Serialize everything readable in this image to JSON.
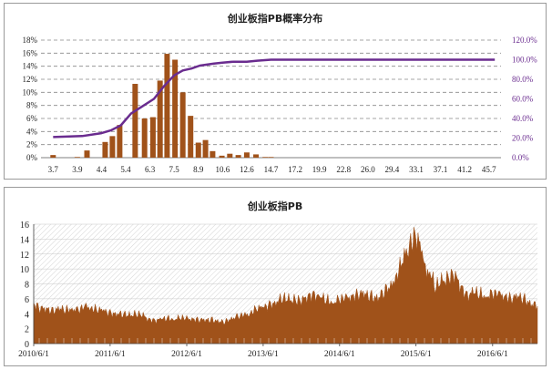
{
  "chart_data": [
    {
      "type": "bar+line",
      "title": "创业板指PB概率分布",
      "categories": [
        "3.7",
        "3.9",
        "4.4",
        "5.4",
        "6.3",
        "7.5",
        "8.9",
        "10.6",
        "12.6",
        "14.7",
        "17.2",
        "19.9",
        "22.8",
        "26.0",
        "29.4",
        "33.1",
        "37.1",
        "41.2",
        "45.7"
      ],
      "bar_x": [
        3.7,
        3.9,
        4.1,
        4.3,
        4.55,
        4.85,
        5.15,
        5.45,
        5.75,
        6.1,
        6.45,
        6.8,
        7.15,
        7.55,
        8.0,
        8.45,
        8.9,
        9.4,
        9.9,
        10.55,
        11.2,
        11.9,
        12.6,
        13.4,
        14.2,
        14.7,
        15.4,
        16.3
      ],
      "bar_values": [
        0.4,
        0.1,
        1.1,
        0.0,
        2.4,
        3.3,
        5.0,
        0.0,
        11.3,
        6.0,
        6.2,
        11.8,
        15.9,
        15.0,
        10.0,
        6.4,
        2.3,
        2.7,
        1.0,
        0.3,
        0.6,
        0.4,
        0.8,
        0.5,
        0.1,
        0.1,
        0.0,
        0.0
      ],
      "cumulative_x": [
        3.7,
        4.0,
        4.4,
        4.8,
        5.2,
        5.6,
        6.0,
        6.5,
        7.0,
        7.5,
        8.0,
        8.5,
        9.0,
        9.5,
        10.0,
        10.6,
        11.5,
        12.6,
        13.5,
        14.7,
        16.0,
        17.2,
        19.9,
        22.8,
        26.0,
        29.4,
        33.1,
        37.1,
        41.2,
        45.7,
        46.8
      ],
      "cumulative_values": [
        21,
        22,
        25,
        28,
        33,
        45,
        52,
        60,
        73,
        84,
        89,
        91,
        94,
        95,
        96,
        97,
        98,
        98,
        99,
        100,
        100,
        100,
        100,
        100,
        100,
        100,
        100,
        100,
        100,
        100,
        100
      ],
      "y_left_ticks": [
        "0%",
        "2%",
        "4%",
        "6%",
        "8%",
        "10%",
        "12%",
        "14%",
        "16%",
        "18%"
      ],
      "y_right_ticks": [
        "0.0%",
        "20.0%",
        "40.0%",
        "60.0%",
        "80.0%",
        "100.0%",
        "120.0%"
      ],
      "ylim_left": [
        0,
        18
      ],
      "ylim_right": [
        0,
        120
      ],
      "colors": {
        "bar": "#a0521a",
        "line": "#6a2c8f",
        "grid": "#888888",
        "right_axis_text": "#6a2c8f"
      }
    },
    {
      "type": "area",
      "title": "创业板指PB",
      "x_ticks": [
        "2010/6/1",
        "2011/6/1",
        "2012/6/1",
        "2013/6/1",
        "2014/6/1",
        "2015/6/1",
        "2016/6/1"
      ],
      "y_ticks": [
        "0",
        "2",
        "4",
        "6",
        "8",
        "10",
        "12",
        "14",
        "16"
      ],
      "ylim": [
        0,
        16
      ],
      "x_range": [
        "2010-06-01",
        "2017-01-01"
      ],
      "series": [
        {
          "date": "2010-06-01",
          "pb": 5.4
        },
        {
          "date": "2010-07-01",
          "pb": 4.7
        },
        {
          "date": "2010-08-01",
          "pb": 4.6
        },
        {
          "date": "2010-09-01",
          "pb": 4.4
        },
        {
          "date": "2010-10-01",
          "pb": 4.6
        },
        {
          "date": "2010-11-01",
          "pb": 4.5
        },
        {
          "date": "2010-12-01",
          "pb": 4.7
        },
        {
          "date": "2011-01-01",
          "pb": 4.4
        },
        {
          "date": "2011-02-01",
          "pb": 4.9
        },
        {
          "date": "2011-03-01",
          "pb": 4.8
        },
        {
          "date": "2011-04-01",
          "pb": 4.6
        },
        {
          "date": "2011-05-01",
          "pb": 4.3
        },
        {
          "date": "2011-06-01",
          "pb": 4.1
        },
        {
          "date": "2011-07-01",
          "pb": 4.0
        },
        {
          "date": "2011-08-01",
          "pb": 3.9
        },
        {
          "date": "2011-09-01",
          "pb": 3.8
        },
        {
          "date": "2011-10-01",
          "pb": 3.9
        },
        {
          "date": "2011-11-01",
          "pb": 3.8
        },
        {
          "date": "2011-12-01",
          "pb": 3.3
        },
        {
          "date": "2012-01-01",
          "pb": 3.1
        },
        {
          "date": "2012-02-01",
          "pb": 3.2
        },
        {
          "date": "2012-03-01",
          "pb": 3.4
        },
        {
          "date": "2012-04-01",
          "pb": 3.3
        },
        {
          "date": "2012-05-01",
          "pb": 3.4
        },
        {
          "date": "2012-06-01",
          "pb": 3.3
        },
        {
          "date": "2012-07-01",
          "pb": 3.3
        },
        {
          "date": "2012-08-01",
          "pb": 3.2
        },
        {
          "date": "2012-09-01",
          "pb": 3.1
        },
        {
          "date": "2012-10-01",
          "pb": 3.2
        },
        {
          "date": "2012-11-01",
          "pb": 2.9
        },
        {
          "date": "2012-12-01",
          "pb": 2.9
        },
        {
          "date": "2013-01-01",
          "pb": 3.4
        },
        {
          "date": "2013-02-01",
          "pb": 3.6
        },
        {
          "date": "2013-03-01",
          "pb": 3.7
        },
        {
          "date": "2013-04-01",
          "pb": 4.1
        },
        {
          "date": "2013-05-01",
          "pb": 4.8
        },
        {
          "date": "2013-06-01",
          "pb": 4.7
        },
        {
          "date": "2013-07-01",
          "pb": 5.2
        },
        {
          "date": "2013-08-01",
          "pb": 5.6
        },
        {
          "date": "2013-09-01",
          "pb": 6.0
        },
        {
          "date": "2013-10-01",
          "pb": 5.9
        },
        {
          "date": "2013-11-01",
          "pb": 5.8
        },
        {
          "date": "2013-12-01",
          "pb": 5.7
        },
        {
          "date": "2014-01-01",
          "pb": 6.4
        },
        {
          "date": "2014-02-01",
          "pb": 6.6
        },
        {
          "date": "2014-03-01",
          "pb": 6.2
        },
        {
          "date": "2014-04-01",
          "pb": 5.8
        },
        {
          "date": "2014-05-01",
          "pb": 5.6
        },
        {
          "date": "2014-06-01",
          "pb": 5.8
        },
        {
          "date": "2014-07-01",
          "pb": 6.0
        },
        {
          "date": "2014-08-01",
          "pb": 6.4
        },
        {
          "date": "2014-09-01",
          "pb": 6.7
        },
        {
          "date": "2014-10-01",
          "pb": 6.5
        },
        {
          "date": "2014-11-01",
          "pb": 6.3
        },
        {
          "date": "2014-12-01",
          "pb": 6.0
        },
        {
          "date": "2015-01-01",
          "pb": 7.0
        },
        {
          "date": "2015-02-01",
          "pb": 7.8
        },
        {
          "date": "2015-03-01",
          "pb": 9.3
        },
        {
          "date": "2015-04-01",
          "pb": 11.0
        },
        {
          "date": "2015-05-01",
          "pb": 13.5
        },
        {
          "date": "2015-06-01",
          "pb": 14.7
        },
        {
          "date": "2015-06-20",
          "pb": 13.2
        },
        {
          "date": "2015-07-10",
          "pb": 9.8
        },
        {
          "date": "2015-08-01",
          "pb": 10.2
        },
        {
          "date": "2015-09-01",
          "pb": 7.4
        },
        {
          "date": "2015-10-01",
          "pb": 8.3
        },
        {
          "date": "2015-11-01",
          "pb": 8.8
        },
        {
          "date": "2015-12-01",
          "pb": 9.3
        },
        {
          "date": "2016-01-01",
          "pb": 7.6
        },
        {
          "date": "2016-02-01",
          "pb": 6.4
        },
        {
          "date": "2016-03-01",
          "pb": 6.8
        },
        {
          "date": "2016-04-01",
          "pb": 6.6
        },
        {
          "date": "2016-05-01",
          "pb": 6.4
        },
        {
          "date": "2016-06-01",
          "pb": 6.6
        },
        {
          "date": "2016-07-01",
          "pb": 6.5
        },
        {
          "date": "2016-08-01",
          "pb": 6.4
        },
        {
          "date": "2016-09-01",
          "pb": 6.1
        },
        {
          "date": "2016-10-01",
          "pb": 6.2
        },
        {
          "date": "2016-11-01",
          "pb": 5.9
        },
        {
          "date": "2016-12-01",
          "pb": 5.3
        },
        {
          "date": "2017-01-01",
          "pb": 5.0
        }
      ],
      "colors": {
        "area": "#a0521a",
        "grid": "#c8c8c8"
      }
    }
  ]
}
